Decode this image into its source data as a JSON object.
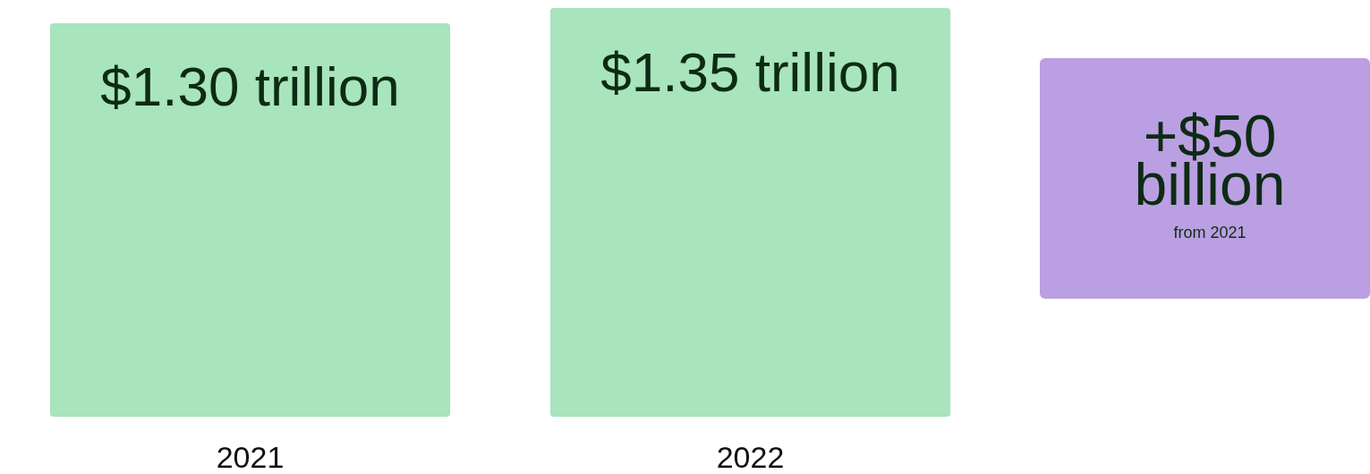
{
  "chart_data": {
    "type": "bar",
    "categories": [
      "2021",
      "2022"
    ],
    "values": [
      1.3,
      1.35
    ],
    "value_labels": [
      "$1.30 trillion",
      "$1.35 trillion"
    ],
    "color": "#a8e4bc",
    "annotations": [
      "+$50 billion",
      "from 2021"
    ]
  }
}
